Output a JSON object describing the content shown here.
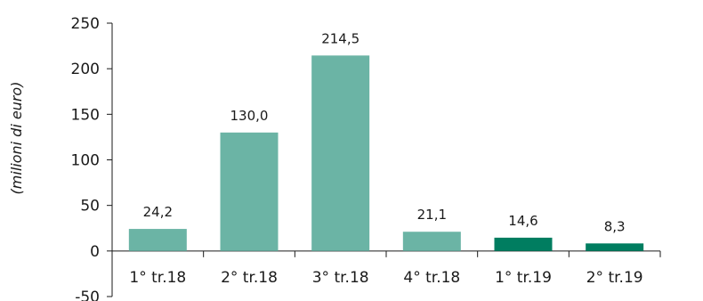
{
  "chart_data": {
    "type": "bar",
    "categories": [
      "1° tr.18",
      "2° tr.18",
      "3° tr.18",
      "4° tr.18",
      "1° tr.19",
      "2° tr.19"
    ],
    "values": [
      24.2,
      130.0,
      214.5,
      21.1,
      14.6,
      8.3
    ],
    "value_labels": [
      "24,2",
      "130,0",
      "214,5",
      "21,1",
      "14,6",
      "8,3"
    ],
    "bar_colors": [
      "#6bb4a5",
      "#6bb4a5",
      "#6bb4a5",
      "#6bb4a5",
      "#007d60",
      "#007d60"
    ],
    "ylabel": "(milioni di euro)",
    "xlabel": "",
    "ylim": [
      -50,
      250
    ],
    "yticks": [
      250,
      200,
      150,
      100,
      50,
      0,
      -50
    ],
    "grid": false,
    "legend": "none"
  }
}
